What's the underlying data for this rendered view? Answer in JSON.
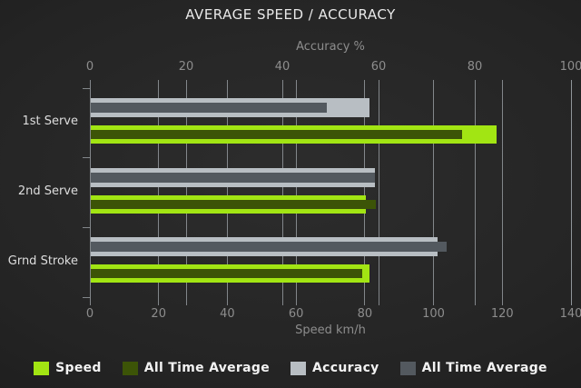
{
  "title": "AVERAGE SPEED / ACCURACY",
  "colors": {
    "background_center": "#2d2d2d",
    "background_edge": "#161616",
    "gridline": "#93989c",
    "title_text": "#e8e8e8",
    "axis_text": "#8d8d8d",
    "category_text": "#dedede",
    "legend_text": "#f2f2f2",
    "speed": "#a2e513",
    "speed_all_time_average": "#3c5407",
    "accuracy": "#b8bec3",
    "accuracy_all_time_average": "#53595f"
  },
  "chart_data": {
    "type": "bar",
    "orientation": "horizontal",
    "title": "AVERAGE SPEED / ACCURACY",
    "categories": [
      "1st Serve",
      "2nd Serve",
      "Grnd Stroke"
    ],
    "axes": {
      "top": {
        "label": "Accuracy %",
        "min": 0,
        "max": 100,
        "ticks": [
          0,
          20,
          40,
          60,
          80,
          100
        ]
      },
      "bottom": {
        "label": "Speed km/h",
        "min": 0,
        "max": 140,
        "ticks": [
          0,
          20,
          40,
          60,
          80,
          100,
          120,
          140
        ]
      }
    },
    "grid": true,
    "legend_position": "bottom",
    "series": [
      {
        "id": "speed",
        "name": "Speed",
        "axis": "bottom",
        "values": [
          118,
          80,
          81
        ],
        "color": "#a2e513"
      },
      {
        "id": "speed_avg",
        "name": "All Time Average",
        "axis": "bottom",
        "values": [
          108,
          83,
          79
        ],
        "color": "#3c5407"
      },
      {
        "id": "accuracy",
        "name": "Accuracy",
        "axis": "top",
        "values": [
          58,
          59,
          72
        ],
        "color": "#b8bec3"
      },
      {
        "id": "accuracy_avg",
        "name": "All Time Average",
        "axis": "top",
        "values": [
          49,
          59,
          74
        ],
        "color": "#53595f"
      }
    ]
  }
}
